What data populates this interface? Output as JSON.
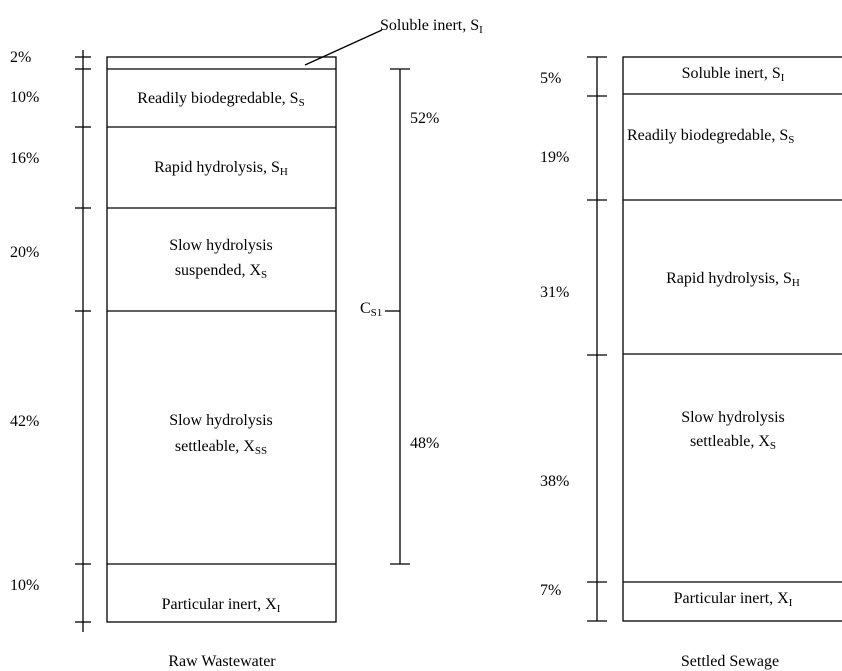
{
  "left": {
    "caption": "Raw Wastewater",
    "percents": [
      "2%",
      "10%",
      "16%",
      "20%",
      "42%",
      "10%"
    ],
    "soluble_inert": {
      "text": "Soluble inert, S",
      "sub": "I"
    },
    "readily": {
      "text": "Readily biodegredable, S",
      "sub": "S"
    },
    "rapid": {
      "text": "Rapid hydrolysis, S",
      "sub": "H"
    },
    "slow_suspended": {
      "line1": "Slow hydrolysis",
      "text": "suspended, X",
      "sub": "S"
    },
    "slow_settleable": {
      "line1": "Slow hydrolysis",
      "text": "settleable, X",
      "sub": "SS"
    },
    "particular": {
      "text": "Particular inert, X",
      "sub": "I"
    },
    "cs1": {
      "text": "C",
      "sub": "S1",
      "upper": "52%",
      "lower": "48%"
    }
  },
  "right": {
    "caption": "Settled Sewage",
    "percents": [
      "5%",
      "19%",
      "31%",
      "38%",
      "7%"
    ],
    "soluble_inert": {
      "text": "Soluble inert, S",
      "sub": "I"
    },
    "readily": {
      "text": "Readily biodegredable, S",
      "sub": "S"
    },
    "rapid": {
      "text": "Rapid hydrolysis, S",
      "sub": "H"
    },
    "slow_settleable": {
      "line1": "Slow hydrolysis",
      "text": "settleable, X",
      "sub": "S"
    },
    "particular": {
      "text": "Particular inert, X",
      "sub": "I"
    }
  }
}
